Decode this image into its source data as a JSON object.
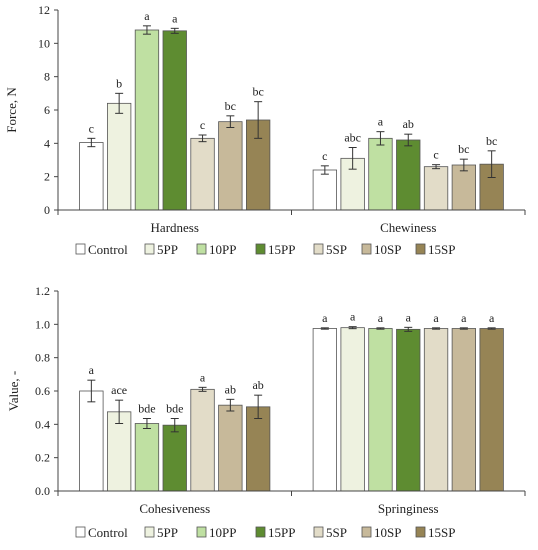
{
  "series_colors": {
    "Control": "#ffffff",
    "5PP": "#eef2e0",
    "10PP": "#bfe0a2",
    "15PP": "#5e8c31",
    "5SP": "#e2dcc8",
    "10SP": "#c7b99a",
    "15SP": "#968455"
  },
  "chart_data": [
    {
      "type": "bar",
      "ylabel": "Force, N",
      "ylim": [
        0,
        12
      ],
      "yticks": [
        "0",
        "2",
        "4",
        "6",
        "8",
        "10",
        "12"
      ],
      "grid": false,
      "legend": "bottom",
      "categories": [
        "Hardness",
        "Chewiness"
      ],
      "series": [
        {
          "name": "Control",
          "values": [
            4.05,
            2.4
          ],
          "errors": [
            0.25,
            0.25
          ],
          "letters": [
            "c",
            "c"
          ]
        },
        {
          "name": "5PP",
          "values": [
            6.4,
            3.1
          ],
          "errors": [
            0.6,
            0.65
          ],
          "letters": [
            "b",
            "abc"
          ]
        },
        {
          "name": "10PP",
          "values": [
            10.8,
            4.3
          ],
          "errors": [
            0.25,
            0.4
          ],
          "letters": [
            "a",
            "a"
          ]
        },
        {
          "name": "15PP",
          "values": [
            10.75,
            4.2
          ],
          "errors": [
            0.15,
            0.35
          ],
          "letters": [
            "a",
            "ab"
          ]
        },
        {
          "name": "5SP",
          "values": [
            4.3,
            2.6
          ],
          "errors": [
            0.2,
            0.12
          ],
          "letters": [
            "c",
            "c"
          ]
        },
        {
          "name": "10SP",
          "values": [
            5.3,
            2.7
          ],
          "errors": [
            0.35,
            0.35
          ],
          "letters": [
            "bc",
            "bc"
          ]
        },
        {
          "name": "15SP",
          "values": [
            5.4,
            2.75
          ],
          "errors": [
            1.1,
            0.8
          ],
          "letters": [
            "bc",
            "bc"
          ]
        }
      ]
    },
    {
      "type": "bar",
      "ylabel": "Value, -",
      "ylim": [
        0,
        1.2
      ],
      "yticks": [
        "0.0",
        "0.2",
        "0.4",
        "0.6",
        "0.8",
        "1.0",
        "1.2"
      ],
      "grid": false,
      "legend": "bottom",
      "categories": [
        "Cohesiveness",
        "Springiness"
      ],
      "series": [
        {
          "name": "Control",
          "values": [
            0.6,
            0.975
          ],
          "errors": [
            0.065,
            0.004
          ],
          "letters": [
            "a",
            "a"
          ]
        },
        {
          "name": "5PP",
          "values": [
            0.475,
            0.98
          ],
          "errors": [
            0.07,
            0.006
          ],
          "letters": [
            "ace",
            "a"
          ]
        },
        {
          "name": "10PP",
          "values": [
            0.405,
            0.975
          ],
          "errors": [
            0.03,
            0.004
          ],
          "letters": [
            "bde",
            "a"
          ]
        },
        {
          "name": "15PP",
          "values": [
            0.395,
            0.97
          ],
          "errors": [
            0.04,
            0.012
          ],
          "letters": [
            "bde",
            "a"
          ]
        },
        {
          "name": "5SP",
          "values": [
            0.61,
            0.975
          ],
          "errors": [
            0.012,
            0.004
          ],
          "letters": [
            "a",
            "a"
          ]
        },
        {
          "name": "10SP",
          "values": [
            0.515,
            0.975
          ],
          "errors": [
            0.035,
            0.004
          ],
          "letters": [
            "ab",
            "a"
          ]
        },
        {
          "name": "15SP",
          "values": [
            0.505,
            0.975
          ],
          "errors": [
            0.07,
            0.004
          ],
          "letters": [
            "ab",
            "a"
          ]
        }
      ]
    }
  ]
}
